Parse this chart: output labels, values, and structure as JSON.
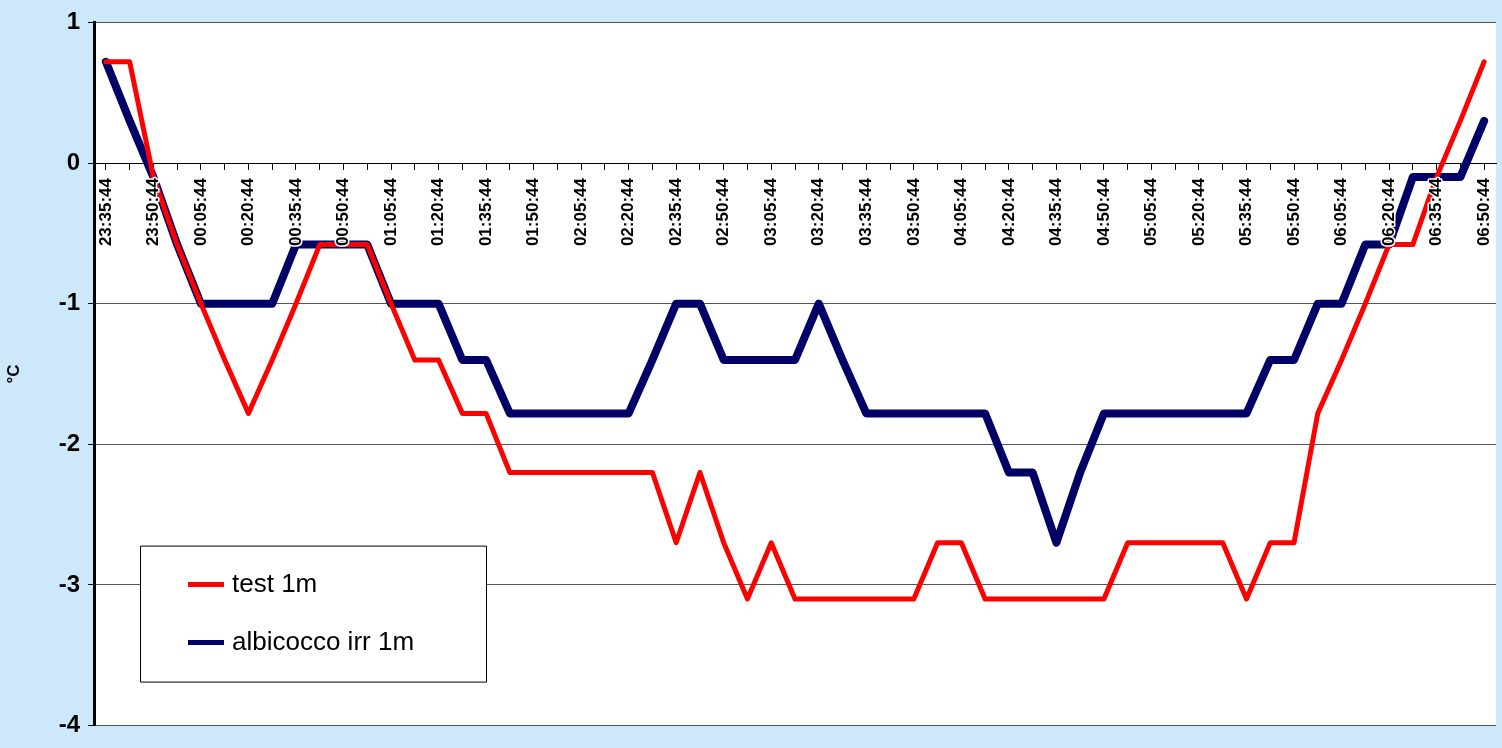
{
  "chart_data": {
    "type": "line",
    "ylabel": "°C",
    "categories": [
      "23:35:44",
      null,
      "23:50:44",
      null,
      "00:05:44",
      null,
      "00:20:44",
      null,
      "00:35:44",
      null,
      "00:50:44",
      null,
      "01:05:44",
      null,
      "01:20:44",
      null,
      "01:35:44",
      null,
      "01:50:44",
      null,
      "02:05:44",
      null,
      "02:20:44",
      null,
      "02:35:44",
      null,
      "02:50:44",
      null,
      "03:05:44",
      null,
      "03:20:44",
      null,
      "03:35:44",
      null,
      "03:50:44",
      null,
      "04:05:44",
      null,
      "04:20:44",
      null,
      "04:35:44",
      null,
      "04:50:44",
      null,
      "05:05:44",
      null,
      "05:20:44",
      null,
      "05:35:44",
      null,
      "05:50:44",
      null,
      "06:05:44",
      null,
      "06:20:44",
      null,
      "06:35:44",
      null,
      "06:50:44"
    ],
    "series": [
      {
        "name": "test 1m",
        "color": "#ff0000",
        "values": [
          0.72,
          0.72,
          -0.1,
          -0.58,
          -1,
          -1.4,
          -1.78,
          -1.4,
          -1,
          -0.58,
          -0.58,
          -0.58,
          -1,
          -1.4,
          -1.4,
          -1.78,
          -1.78,
          -2.2,
          -2.2,
          -2.2,
          -2.2,
          -2.2,
          -2.2,
          -2.2,
          -2.7,
          -2.2,
          -2.7,
          -3.1,
          -2.7,
          -3.1,
          -3.1,
          -3.1,
          -3.1,
          -3.1,
          -3.1,
          -2.7,
          -2.7,
          -3.1,
          -3.1,
          -3.1,
          -3.1,
          -3.1,
          -3.1,
          -2.7,
          -2.7,
          -2.7,
          -2.7,
          -2.7,
          -3.1,
          -2.7,
          -2.7,
          -1.78,
          -1.4,
          -1,
          -0.58,
          -0.58,
          -0.1,
          0.3,
          0.72
        ]
      },
      {
        "name": "albicocco irr 1m",
        "color": "#000066",
        "values": [
          0.72,
          0.3,
          -0.1,
          -0.58,
          -1,
          -1,
          -1,
          -1,
          -0.58,
          -0.58,
          -0.58,
          -0.58,
          -1,
          -1,
          -1,
          -1.4,
          -1.4,
          -1.78,
          -1.78,
          -1.78,
          -1.78,
          -1.78,
          -1.78,
          -1.4,
          -1,
          -1,
          -1.4,
          -1.4,
          -1.4,
          -1.4,
          -1,
          -1.4,
          -1.78,
          -1.78,
          -1.78,
          -1.78,
          -1.78,
          -1.78,
          -2.2,
          -2.2,
          -2.7,
          -2.2,
          -1.78,
          -1.78,
          -1.78,
          -1.78,
          -1.78,
          -1.78,
          -1.78,
          -1.4,
          -1.4,
          -1,
          -1,
          -0.58,
          -0.58,
          -0.1,
          -0.1,
          -0.1,
          0.3
        ]
      }
    ],
    "ylim": [
      -4,
      1
    ],
    "yticks": [
      -4,
      -3,
      -2,
      -1,
      0,
      1
    ],
    "grid": "y",
    "legend": "bottom left",
    "marker": "none",
    "line_style": "solid"
  }
}
